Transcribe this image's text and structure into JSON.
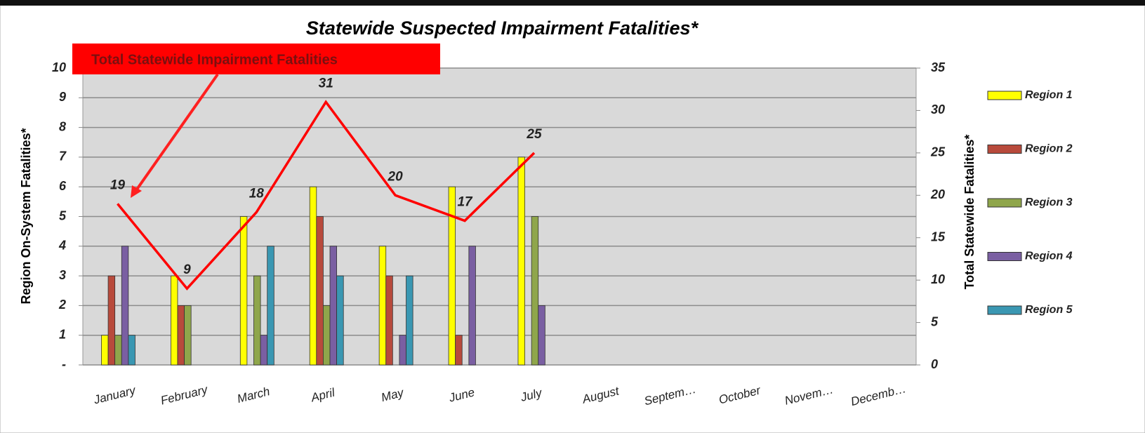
{
  "chart_data": {
    "type": "bar_line",
    "title": "Statewide Suspected Impairment Fatalities*",
    "y_label": "Region On-System Fatalities*",
    "y2_label": "Total Statewide Fatalities*",
    "annotation": "Total Statewide Impairment Fatalities",
    "categories": [
      "January",
      "February",
      "March",
      "April",
      "May",
      "June",
      "July",
      "August",
      "Septem…",
      "October",
      "Novem…",
      "Decemb…"
    ],
    "series": [
      {
        "name": "Region 1",
        "color": "#ffff00",
        "values": [
          1,
          3,
          5,
          6,
          4,
          6,
          7,
          null,
          null,
          null,
          null,
          null
        ]
      },
      {
        "name": "Region 2",
        "color": "#b84a3c",
        "values": [
          3,
          2,
          0,
          5,
          3,
          1,
          0,
          null,
          null,
          null,
          null,
          null
        ]
      },
      {
        "name": "Region 3",
        "color": "#8fa64b",
        "values": [
          1,
          2,
          3,
          2,
          0,
          0,
          5,
          null,
          null,
          null,
          null,
          null
        ]
      },
      {
        "name": "Region 4",
        "color": "#7a5fa2",
        "values": [
          4,
          0,
          1,
          4,
          1,
          4,
          2,
          null,
          null,
          null,
          null,
          null
        ]
      },
      {
        "name": "Region 5",
        "color": "#3a97b2",
        "values": [
          1,
          0,
          4,
          3,
          3,
          0,
          0,
          null,
          null,
          null,
          null,
          null
        ]
      }
    ],
    "line": {
      "axis": "y2",
      "color": "#ff0000",
      "values": [
        19,
        9,
        18,
        31,
        20,
        17,
        25,
        null,
        null,
        null,
        null,
        null
      ]
    },
    "ylim": [
      0,
      10
    ],
    "yticks": [
      {
        "value": 0,
        "label": "-"
      },
      1,
      2,
      3,
      4,
      5,
      6,
      7,
      8,
      9,
      10
    ],
    "y2lim": [
      0,
      35
    ],
    "y2ticks": [
      0,
      5,
      10,
      15,
      20,
      25,
      30,
      35
    ],
    "grid": true,
    "legend": "right"
  }
}
